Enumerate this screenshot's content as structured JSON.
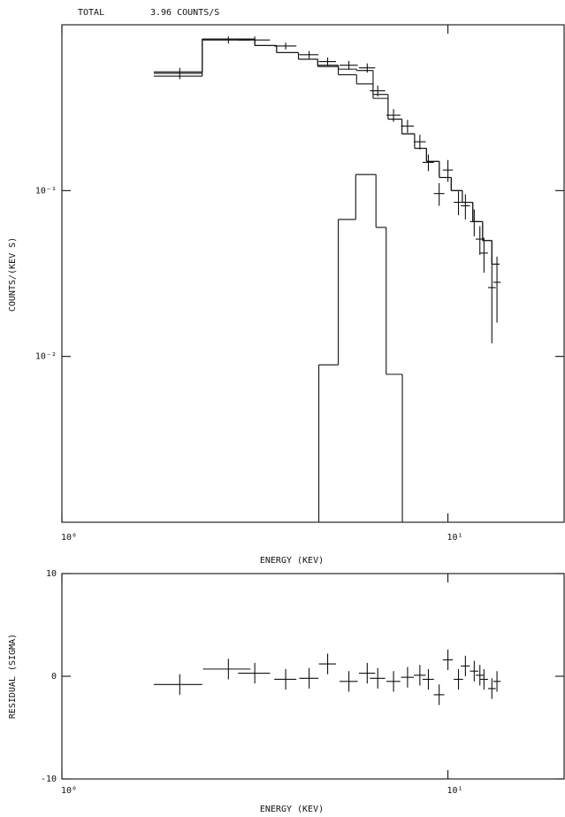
{
  "chart_data": [
    {
      "type": "errorbar",
      "title": "TOTAL",
      "subtitle": "3.96 COUNTS/S",
      "xlabel": "ENERGY (KEV)",
      "ylabel": "COUNTS/(KEV S)",
      "log_x": true,
      "log_y": true,
      "color": "#000000",
      "xlim": [
        1,
        20
      ],
      "ylim": [
        0.001,
        1
      ],
      "xticks": [
        {
          "value": 1,
          "label": "10⁰"
        },
        {
          "value": 10,
          "label": "10¹"
        }
      ],
      "yticks": [
        {
          "value": 0.1,
          "label": "10⁻¹"
        },
        {
          "value": 0.01,
          "label": "10⁻²"
        }
      ],
      "x": [
        2.02,
        2.7,
        3.16,
        3.8,
        4.37,
        4.88,
        5.54,
        6.18,
        6.58,
        7.23,
        7.86,
        8.46,
        8.9,
        9.49,
        10.0,
        10.65,
        11.1,
        11.7,
        12.1,
        12.4,
        13.0,
        13.4
      ],
      "xerr": [
        0.29,
        0.38,
        0.3,
        0.25,
        0.25,
        0.25,
        0.3,
        0.3,
        0.3,
        0.3,
        0.3,
        0.3,
        0.3,
        0.3,
        0.3,
        0.3,
        0.3,
        0.3,
        0.3,
        0.3,
        0.3,
        0.3
      ],
      "y": [
        0.51,
        0.81,
        0.81,
        0.745,
        0.66,
        0.6,
        0.57,
        0.55,
        0.4,
        0.285,
        0.245,
        0.197,
        0.148,
        0.096,
        0.133,
        0.085,
        0.081,
        0.065,
        0.051,
        0.042,
        0.026,
        0.028
      ],
      "yerr": [
        0.04,
        0.04,
        0.04,
        0.035,
        0.035,
        0.035,
        0.035,
        0.035,
        0.03,
        0.025,
        0.022,
        0.02,
        0.017,
        0.015,
        0.02,
        0.014,
        0.014,
        0.012,
        0.01,
        0.01,
        0.014,
        0.012
      ],
      "model": {
        "edges": [
          1.73,
          2.31,
          3.16,
          3.6,
          4.1,
          4.6,
          5.2,
          5.8,
          6.4,
          7.0,
          7.6,
          8.2,
          8.8,
          9.5,
          10.2,
          10.9,
          11.6,
          12.3,
          13.0,
          13.6
        ],
        "values": [
          0.52,
          0.82,
          0.75,
          0.68,
          0.62,
          0.57,
          0.54,
          0.53,
          0.38,
          0.27,
          0.22,
          0.18,
          0.15,
          0.12,
          0.1,
          0.085,
          0.065,
          0.05,
          0.036
        ]
      },
      "continuum": {
        "edges": [
          1.73,
          2.31,
          3.16,
          3.6,
          4.1,
          4.6,
          5.2,
          5.8,
          6.4,
          7.0,
          7.6,
          8.2,
          8.8,
          9.5,
          10.2,
          10.9,
          11.6,
          12.3,
          13.0,
          13.6
        ],
        "values": [
          0.49,
          0.82,
          0.75,
          0.68,
          0.62,
          0.56,
          0.5,
          0.44,
          0.36,
          0.27,
          0.22,
          0.18,
          0.15,
          0.12,
          0.1,
          0.085,
          0.065,
          0.05,
          0.036
        ]
      },
      "line_component": {
        "edges": [
          4.63,
          5.2,
          5.77,
          6.51,
          6.92,
          7.62
        ],
        "values": [
          0.0089,
          0.067,
          0.125,
          0.06,
          0.0078
        ]
      }
    },
    {
      "type": "errorbar",
      "xlabel": "ENERGY (KEV)",
      "ylabel": "RESIDUAL (SIGMA)",
      "log_x": true,
      "log_y": false,
      "color": "#000000",
      "xlim": [
        1,
        20
      ],
      "ylim": [
        -10,
        10
      ],
      "xticks": [
        {
          "value": 1,
          "label": "10⁰"
        },
        {
          "value": 10,
          "label": "10¹"
        }
      ],
      "yticks": [
        -10,
        0,
        10
      ],
      "x": [
        2.02,
        2.7,
        3.16,
        3.8,
        4.37,
        4.88,
        5.54,
        6.18,
        6.58,
        7.23,
        7.86,
        8.46,
        8.9,
        9.49,
        10.0,
        10.65,
        11.1,
        11.7,
        12.1,
        12.4,
        13.0,
        13.4
      ],
      "xerr": [
        0.29,
        0.38,
        0.3,
        0.25,
        0.25,
        0.25,
        0.3,
        0.3,
        0.3,
        0.3,
        0.3,
        0.3,
        0.3,
        0.3,
        0.3,
        0.3,
        0.3,
        0.3,
        0.3,
        0.3,
        0.3,
        0.3
      ],
      "y": [
        -0.8,
        0.7,
        0.3,
        -0.3,
        -0.2,
        1.2,
        -0.5,
        0.3,
        -0.2,
        -0.5,
        -0.1,
        0.1,
        -0.3,
        -1.8,
        1.6,
        -0.3,
        1.0,
        0.5,
        0.1,
        -0.3,
        -1.2,
        -0.5
      ],
      "yerr": [
        1,
        1,
        1,
        1,
        1,
        1,
        1,
        1,
        1,
        1,
        1,
        1,
        1,
        1,
        1,
        1,
        1,
        1,
        1,
        1,
        1,
        1
      ]
    }
  ]
}
